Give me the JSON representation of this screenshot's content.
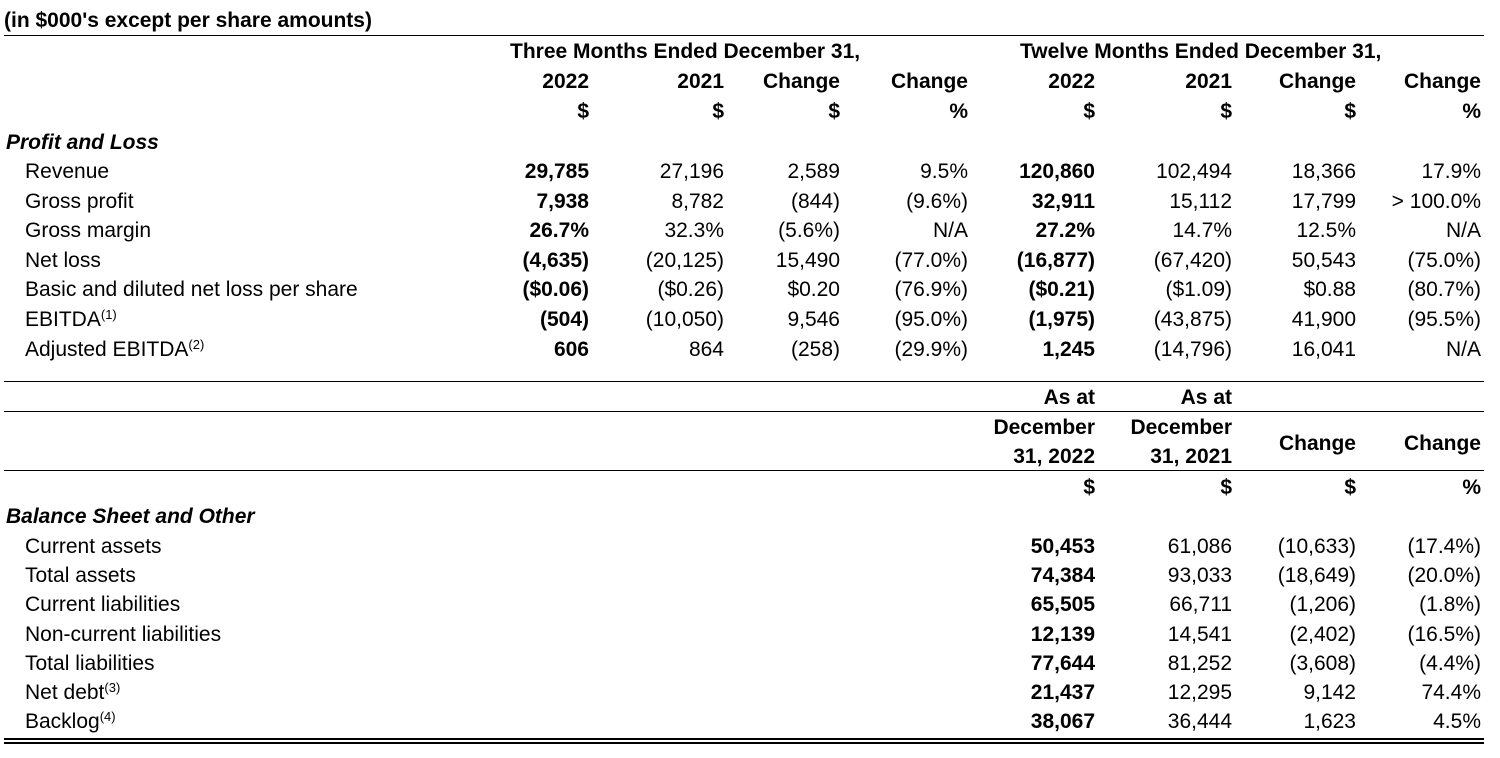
{
  "units_note": "(in $000's except per share amounts)",
  "pl": {
    "group1": "Three Months Ended December 31,",
    "group2": "Twelve Months Ended December 31,",
    "years": [
      "2022",
      "2021",
      "Change",
      "Change",
      "2022",
      "2021",
      "Change",
      "Change"
    ],
    "units": [
      "$",
      "$",
      "$",
      "%",
      "$",
      "$",
      "$",
      "%"
    ],
    "section": "Profit and Loss",
    "rows": [
      {
        "label": "Revenue",
        "sup": "",
        "vals": [
          "29,785",
          "27,196",
          "2,589",
          "9.5%",
          "120,860",
          "102,494",
          "18,366",
          "17.9%"
        ]
      },
      {
        "label": "Gross profit",
        "sup": "",
        "vals": [
          "7,938",
          "8,782",
          "(844)",
          "(9.6%)",
          "32,911",
          "15,112",
          "17,799",
          "> 100.0%"
        ]
      },
      {
        "label": "Gross margin",
        "sup": "",
        "vals": [
          "26.7%",
          "32.3%",
          "(5.6%)",
          "N/A",
          "27.2%",
          "14.7%",
          "12.5%",
          "N/A"
        ]
      },
      {
        "label": "Net loss",
        "sup": "",
        "vals": [
          "(4,635)",
          "(20,125)",
          "15,490",
          "(77.0%)",
          "(16,877)",
          "(67,420)",
          "50,543",
          "(75.0%)"
        ]
      },
      {
        "label": "Basic and diluted net loss per share",
        "sup": "",
        "vals": [
          "($0.06)",
          "($0.26)",
          "$0.20",
          "(76.9%)",
          "($0.21)",
          "($1.09)",
          "$0.88",
          "(80.7%)"
        ]
      },
      {
        "label": "EBITDA",
        "sup": "(1)",
        "vals": [
          "(504)",
          "(10,050)",
          "9,546",
          "(95.0%)",
          "(1,975)",
          "(43,875)",
          "41,900",
          "(95.5%)"
        ]
      },
      {
        "label": "Adjusted EBITDA",
        "sup": "(2)",
        "vals": [
          "606",
          "864",
          "(258)",
          "(29.9%)",
          "1,245",
          "(14,796)",
          "16,041",
          "N/A"
        ]
      }
    ]
  },
  "bs": {
    "as_at": [
      "As at",
      "As at"
    ],
    "date_line1": [
      "December",
      "December"
    ],
    "date_line2": [
      "31, 2022",
      "31, 2021"
    ],
    "change": [
      "Change",
      "Change"
    ],
    "units": [
      "$",
      "$",
      "$",
      "%"
    ],
    "section": "Balance Sheet and Other",
    "rows": [
      {
        "label": "Current assets",
        "sup": "",
        "vals": [
          "50,453",
          "61,086",
          "(10,633)",
          "(17.4%)"
        ]
      },
      {
        "label": "Total assets",
        "sup": "",
        "vals": [
          "74,384",
          "93,033",
          "(18,649)",
          "(20.0%)"
        ]
      },
      {
        "label": "Current liabilities",
        "sup": "",
        "vals": [
          "65,505",
          "66,711",
          "(1,206)",
          "(1.8%)"
        ]
      },
      {
        "label": "Non-current liabilities",
        "sup": "",
        "vals": [
          "12,139",
          "14,541",
          "(2,402)",
          "(16.5%)"
        ]
      },
      {
        "label": "Total liabilities",
        "sup": "",
        "vals": [
          "77,644",
          "81,252",
          "(3,608)",
          "(4.4%)"
        ]
      },
      {
        "label": "Net debt",
        "sup": "(3)",
        "vals": [
          "21,437",
          "12,295",
          "9,142",
          "74.4%"
        ]
      },
      {
        "label": "Backlog",
        "sup": "(4)",
        "vals": [
          "38,067",
          "36,444",
          "1,623",
          "4.5%"
        ]
      }
    ]
  }
}
